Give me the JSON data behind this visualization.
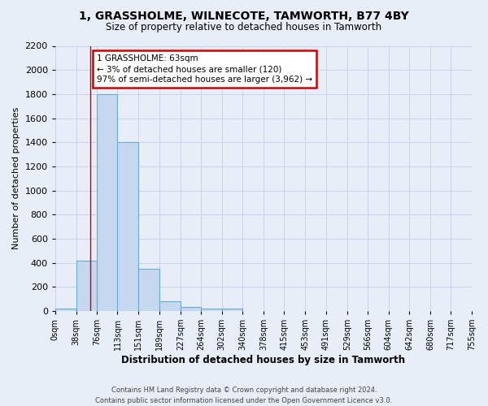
{
  "title1": "1, GRASSHOLME, WILNECOTE, TAMWORTH, B77 4BY",
  "title2": "Size of property relative to detached houses in Tamworth",
  "xlabel": "Distribution of detached houses by size in Tamworth",
  "ylabel": "Number of detached properties",
  "bins": [
    0,
    38,
    76,
    113,
    151,
    189,
    227,
    264,
    302,
    340,
    378,
    415,
    453,
    491,
    529,
    566,
    604,
    642,
    680,
    717,
    755
  ],
  "bar_heights": [
    20,
    420,
    1800,
    1400,
    350,
    80,
    30,
    20,
    20,
    0,
    0,
    0,
    0,
    0,
    0,
    0,
    0,
    0,
    0,
    0
  ],
  "bar_color": "#c5d8f0",
  "bar_edge_color": "#6aaad4",
  "grid_color": "#c8d4e8",
  "red_line_x": 63,
  "annotation_text": "1 GRASSHOLME: 63sqm\n← 3% of detached houses are smaller (120)\n97% of semi-detached houses are larger (3,962) →",
  "annotation_box_color": "#ffffff",
  "annotation_edge_color": "#cc0000",
  "ylim": [
    0,
    2200
  ],
  "yticks": [
    0,
    200,
    400,
    600,
    800,
    1000,
    1200,
    1400,
    1600,
    1800,
    2000,
    2200
  ],
  "tick_labels": [
    "0sqm",
    "38sqm",
    "76sqm",
    "113sqm",
    "151sqm",
    "189sqm",
    "227sqm",
    "264sqm",
    "302sqm",
    "340sqm",
    "378sqm",
    "415sqm",
    "453sqm",
    "491sqm",
    "529sqm",
    "566sqm",
    "604sqm",
    "642sqm",
    "680sqm",
    "717sqm",
    "755sqm"
  ],
  "footer": "Contains HM Land Registry data © Crown copyright and database right 2024.\nContains public sector information licensed under the Open Government Licence v3.0.",
  "bg_color": "#e8eef8",
  "plot_bg_color": "#e8eef8"
}
